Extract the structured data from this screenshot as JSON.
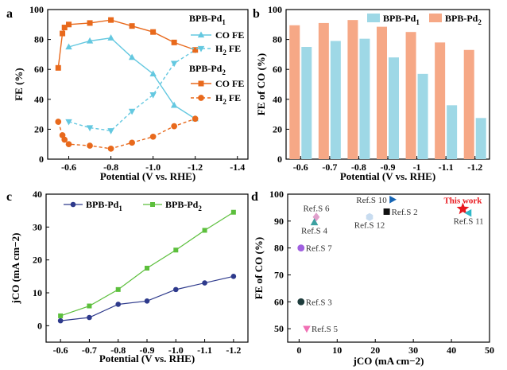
{
  "colors": {
    "pd1": "#64c8e0",
    "pd2": "#e8691c",
    "bar_pd1": "#9ed8e6",
    "bar_pd2": "#f6a886",
    "c_pd1": "#2e3a8c",
    "c_pd2": "#5cbf3c",
    "this_work": "#e8181e"
  },
  "chart_data": [
    {
      "panel": "a",
      "type": "line",
      "xlabel": "Potential (V vs. RHE)",
      "ylabel": "FE (%)",
      "xlim": [
        -0.5,
        -1.45
      ],
      "ylim": [
        0,
        100
      ],
      "xticks": [
        -0.6,
        -0.8,
        -1.0,
        -1.2,
        -1.4
      ],
      "xtick_labels": [
        "-0.6",
        "-0.8",
        "-1.0",
        "-1.2",
        "-1.4"
      ],
      "yticks": [
        0,
        20,
        40,
        60,
        80,
        100
      ],
      "legend_pd1_title": "BPB-Pd1",
      "legend_pd2_title": "BPB-Pd2",
      "legend_co": "CO FE",
      "legend_h2": "H2 FE",
      "series": [
        {
          "name": "BPB-Pd1 CO FE",
          "group": "pd1",
          "style": "solid",
          "marker": "triangle",
          "x": [
            -0.6,
            -0.7,
            -0.8,
            -0.9,
            -1.0,
            -1.1,
            -1.2
          ],
          "y": [
            75,
            79,
            81,
            68,
            57,
            36,
            27
          ]
        },
        {
          "name": "BPB-Pd1 H2 FE",
          "group": "pd1",
          "style": "dashed",
          "marker": "triangle-down",
          "x": [
            -0.6,
            -0.7,
            -0.8,
            -0.9,
            -1.0,
            -1.1,
            -1.2
          ],
          "y": [
            25,
            21,
            19,
            32,
            43,
            64,
            73
          ]
        },
        {
          "name": "BPB-Pd2 CO FE",
          "group": "pd2",
          "style": "solid",
          "marker": "square",
          "x": [
            -0.55,
            -0.57,
            -0.58,
            -0.6,
            -0.7,
            -0.8,
            -0.9,
            -1.0,
            -1.1,
            -1.2
          ],
          "y": [
            61,
            84,
            88,
            90,
            91,
            93,
            89,
            85,
            78,
            73
          ]
        },
        {
          "name": "BPB-Pd2 H2 FE",
          "group": "pd2",
          "style": "dashed",
          "marker": "circle",
          "x": [
            -0.55,
            -0.57,
            -0.58,
            -0.6,
            -0.7,
            -0.8,
            -0.9,
            -1.0,
            -1.1,
            -1.2
          ],
          "y": [
            25,
            16,
            13,
            10,
            9,
            7,
            11,
            15,
            22,
            27
          ]
        }
      ]
    },
    {
      "panel": "b",
      "type": "bar",
      "xlabel": "Potential (V vs. RHE)",
      "ylabel": "FE of CO (%)",
      "ylim": [
        0,
        100
      ],
      "yticks": [
        0,
        20,
        40,
        60,
        80,
        100
      ],
      "categories": [
        "-0.6",
        "-0.7",
        "-0.8",
        "-0.9",
        "-1",
        "-1.1",
        "-1.2"
      ],
      "series": [
        {
          "name": "BPB-Pd1",
          "group": "pd1",
          "values": [
            75,
            79,
            80.5,
            68,
            57,
            36,
            27.5
          ]
        },
        {
          "name": "BPB-Pd2",
          "group": "pd2",
          "values": [
            89.5,
            91,
            93,
            88.5,
            85,
            78,
            73
          ]
        }
      ]
    },
    {
      "panel": "c",
      "type": "line",
      "xlabel": "Potential (V vs. RHE)",
      "ylabel": "jCO (mA cm−2)",
      "ylim": [
        -5,
        40
      ],
      "yticks": [
        0,
        10,
        20,
        30,
        40
      ],
      "categories": [
        "-0.6",
        "-0.7",
        "-0.8",
        "-0.9",
        "-1.0",
        "-1.1",
        "-1.2"
      ],
      "series": [
        {
          "name": "BPB-Pd1",
          "group": "pd1",
          "marker": "circle",
          "values": [
            1.5,
            2.5,
            6.5,
            7.5,
            11,
            13,
            15
          ]
        },
        {
          "name": "BPB-Pd2",
          "group": "pd2",
          "marker": "square",
          "values": [
            3,
            6,
            11,
            17.5,
            23,
            29,
            34.5
          ]
        }
      ]
    },
    {
      "panel": "d",
      "type": "scatter",
      "xlabel": "jCO (mA cm−2)",
      "ylabel": "FE of CO (%)",
      "xlim": [
        -3,
        50
      ],
      "ylim": [
        45,
        100
      ],
      "xticks": [
        0,
        10,
        20,
        30,
        40,
        50
      ],
      "yticks": [
        50,
        60,
        70,
        80,
        90,
        100
      ],
      "points": [
        {
          "label": "Ref.S 10",
          "x": 24.5,
          "y": 98,
          "marker": "tri-right",
          "color": "#1464b4",
          "label_pos": "left"
        },
        {
          "label": "Ref.S 6",
          "x": 4.5,
          "y": 91.5,
          "marker": "diamond",
          "color": "#e0a0cc",
          "label_pos": "above"
        },
        {
          "label": "Ref.S 2",
          "x": 23,
          "y": 93.5,
          "marker": "square",
          "color": "#111111",
          "label_pos": "right"
        },
        {
          "label": "Ref.S 12",
          "x": 18.5,
          "y": 91.5,
          "marker": "hexagon",
          "color": "#c8dcf0",
          "label_pos": "below"
        },
        {
          "label": "Ref.S 4",
          "x": 4,
          "y": 89.5,
          "marker": "tri-up",
          "color": "#3ca0a0",
          "label_pos": "below"
        },
        {
          "label": "This work",
          "x": 43,
          "y": 94.5,
          "marker": "star",
          "color": "#e8181e",
          "label_pos": "above"
        },
        {
          "label": "Ref.S 11",
          "x": 44.5,
          "y": 93,
          "marker": "tri-left",
          "color": "#2eb8c8",
          "label_pos": "below"
        },
        {
          "label": "Ref.S 7",
          "x": 0.5,
          "y": 80,
          "marker": "circle",
          "color": "#a060e0",
          "label_pos": "right"
        },
        {
          "label": "Ref.S 3",
          "x": 0.5,
          "y": 60,
          "marker": "circle",
          "color": "#1e3c3c",
          "label_pos": "right"
        },
        {
          "label": "Ref.S 5",
          "x": 2,
          "y": 50,
          "marker": "tri-down",
          "color": "#f070b4",
          "label_pos": "right"
        }
      ]
    }
  ]
}
